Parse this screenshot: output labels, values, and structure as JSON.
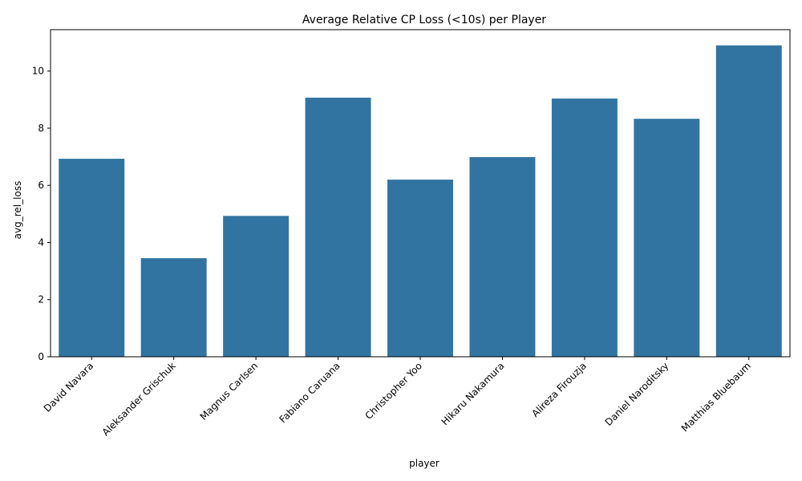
{
  "chart_data": {
    "type": "bar",
    "title": "Average Relative CP Loss (<10s) per Player",
    "xlabel": "player",
    "ylabel": "avg_rel_loss",
    "categories": [
      "David Navara",
      "Aleksander Grischuk",
      "Magnus Carlsen",
      "Fabiano Caruana",
      "Christopher Yoo",
      "Hikaru Nakamura",
      "Alireza Firouzja",
      "Daniel Naroditsky",
      "Matthias Bluebaum"
    ],
    "values": [
      6.93,
      3.45,
      4.93,
      9.07,
      6.2,
      6.99,
      9.04,
      8.33,
      10.9
    ],
    "ylim": [
      0,
      11.45
    ],
    "yticks": [
      0,
      2,
      4,
      6,
      8,
      10
    ],
    "bar_color": "#3274a1",
    "grid": false,
    "legend": "none"
  }
}
